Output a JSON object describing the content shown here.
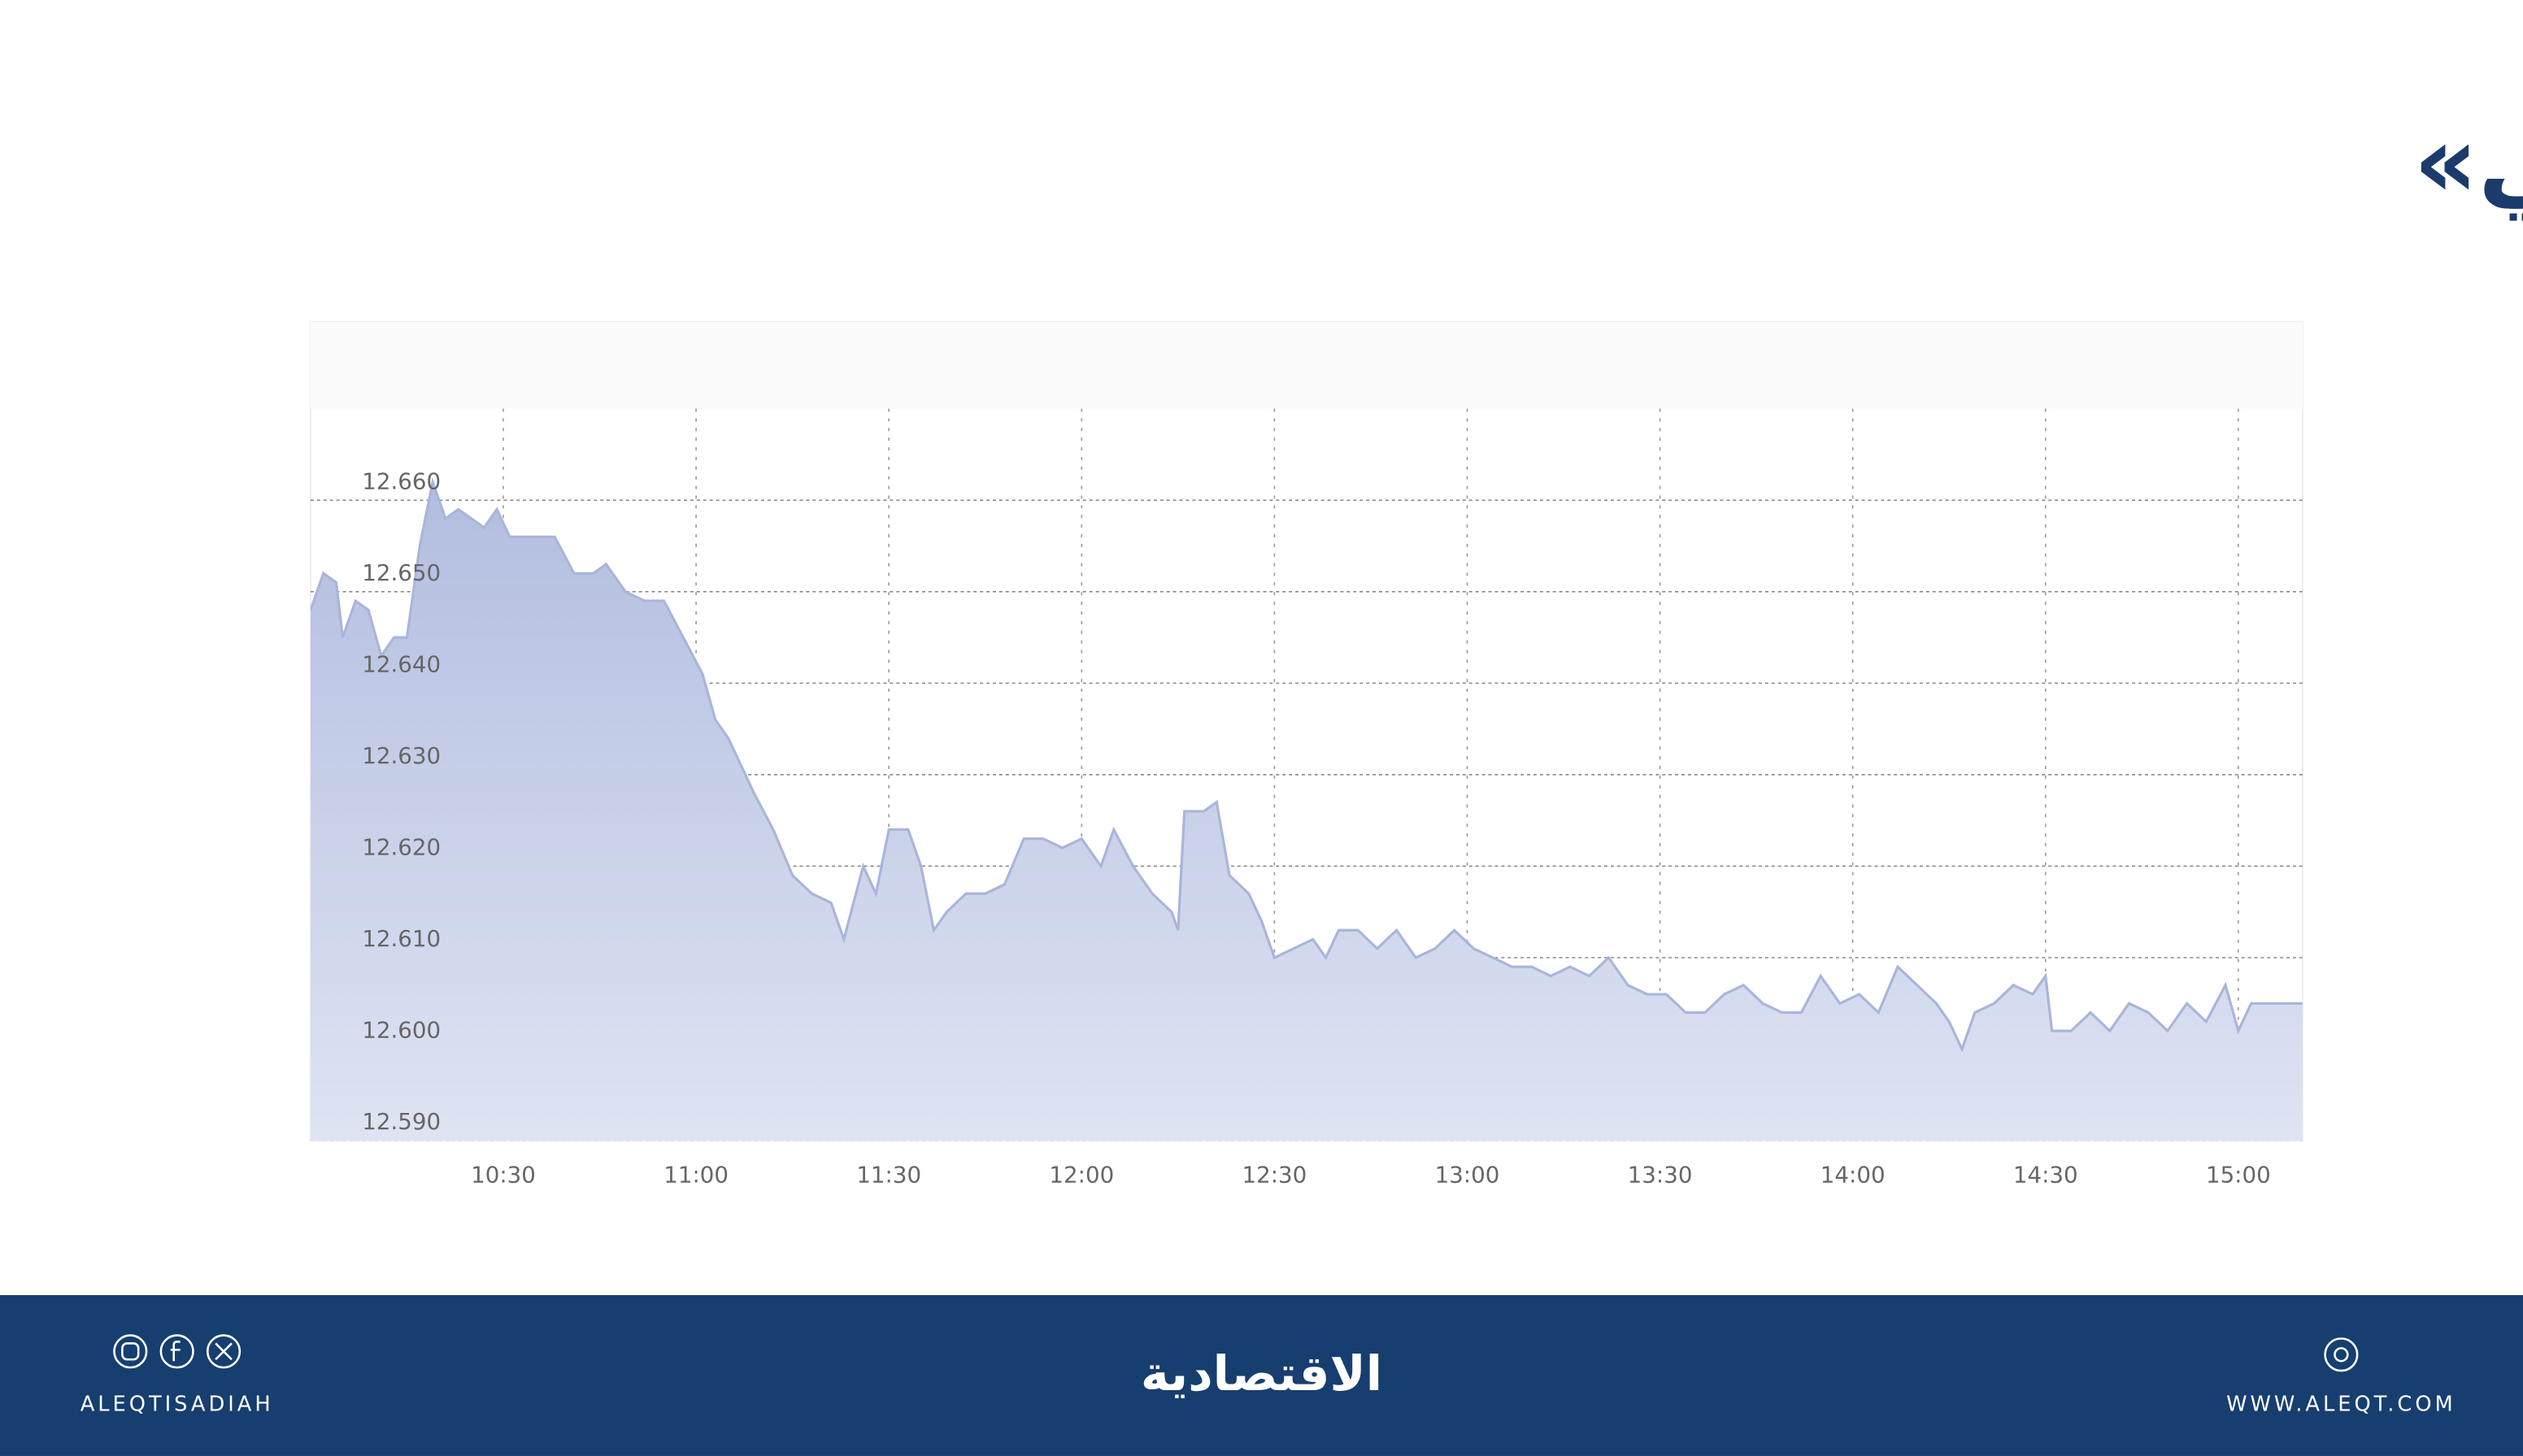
{
  "title": "مؤشر «تاسي»",
  "chart_data": {
    "type": "area",
    "color": "#a9b5da",
    "x": [
      "10:00",
      "10:02",
      "10:04",
      "10:05",
      "10:07",
      "10:09",
      "10:11",
      "10:13",
      "10:15",
      "10:17",
      "10:19",
      "10:21",
      "10:23",
      "10:25",
      "10:27",
      "10:29",
      "10:31",
      "10:35",
      "10:38",
      "10:41",
      "10:44",
      "10:46",
      "10:49",
      "10:52",
      "10:55",
      "10:58",
      "11:01",
      "11:03",
      "11:05",
      "11:07",
      "11:09",
      "11:12",
      "11:15",
      "11:18",
      "11:21",
      "11:23",
      "11:26",
      "11:28",
      "11:30",
      "11:33",
      "11:35",
      "11:37",
      "11:39",
      "11:42",
      "11:45",
      "11:48",
      "11:51",
      "11:54",
      "11:57",
      "12:00",
      "12:03",
      "12:05",
      "12:08",
      "12:11",
      "12:14",
      "12:15",
      "12:16",
      "12:19",
      "12:21",
      "12:23",
      "12:26",
      "12:28",
      "12:30",
      "12:33",
      "12:36",
      "12:38",
      "12:40",
      "12:43",
      "12:46",
      "12:49",
      "12:52",
      "12:55",
      "12:58",
      "13:01",
      "13:04",
      "13:07",
      "13:10",
      "13:13",
      "13:16",
      "13:19",
      "13:22",
      "13:25",
      "13:28",
      "13:31",
      "13:34",
      "13:37",
      "13:40",
      "13:43",
      "13:46",
      "13:49",
      "13:52",
      "13:55",
      "13:58",
      "14:01",
      "14:04",
      "14:07",
      "14:10",
      "14:13",
      "14:15",
      "14:17",
      "14:19",
      "14:22",
      "14:25",
      "14:28",
      "14:30",
      "14:31",
      "14:34",
      "14:37",
      "14:40",
      "14:43",
      "14:46",
      "14:49",
      "14:52",
      "14:55",
      "14:58",
      "15:00",
      "15:02",
      "15:10"
    ],
    "values": [
      12.648,
      12.652,
      12.651,
      12.645,
      12.649,
      12.648,
      12.643,
      12.645,
      12.645,
      12.655,
      12.662,
      12.658,
      12.659,
      12.658,
      12.657,
      12.659,
      12.656,
      12.656,
      12.656,
      12.652,
      12.652,
      12.653,
      12.65,
      12.649,
      12.649,
      12.645,
      12.641,
      12.636,
      12.634,
      12.631,
      12.628,
      12.624,
      12.619,
      12.617,
      12.616,
      12.612,
      12.62,
      12.617,
      12.624,
      12.624,
      12.62,
      12.613,
      12.615,
      12.617,
      12.617,
      12.618,
      12.623,
      12.623,
      12.622,
      12.623,
      12.62,
      12.624,
      12.62,
      12.617,
      12.615,
      12.613,
      12.626,
      12.626,
      12.627,
      12.619,
      12.617,
      12.614,
      12.61,
      12.611,
      12.612,
      12.61,
      12.613,
      12.613,
      12.611,
      12.613,
      12.61,
      12.611,
      12.613,
      12.611,
      12.61,
      12.609,
      12.609,
      12.608,
      12.609,
      12.608,
      12.61,
      12.607,
      12.606,
      12.606,
      12.604,
      12.604,
      12.606,
      12.607,
      12.605,
      12.604,
      12.604,
      12.608,
      12.605,
      12.606,
      12.604,
      12.609,
      12.607,
      12.605,
      12.603,
      12.6,
      12.604,
      12.605,
      12.607,
      12.606,
      12.608,
      12.602,
      12.602,
      12.604,
      12.602,
      12.605,
      12.604,
      12.602,
      12.605,
      12.603,
      12.607,
      12.602,
      12.605,
      12.605
    ],
    "xlim": [
      "10:00",
      "15:10"
    ],
    "xticks": [
      "10:30",
      "11:00",
      "11:30",
      "12:00",
      "12:30",
      "13:00",
      "13:30",
      "14:00",
      "14:30",
      "15:00"
    ],
    "ylim": [
      12.59,
      12.6795
    ],
    "yticks": [
      {
        "value": 12.59,
        "label": "12.590"
      },
      {
        "value": 12.6,
        "label": "12.600"
      },
      {
        "value": 12.61,
        "label": "12.610"
      },
      {
        "value": 12.62,
        "label": "12.620"
      },
      {
        "value": 12.63,
        "label": "12.630"
      },
      {
        "value": 12.64,
        "label": "12.640"
      },
      {
        "value": 12.65,
        "label": "12.650"
      },
      {
        "value": 12.66,
        "label": "12.660"
      }
    ],
    "grid": true
  },
  "footer": {
    "left": "ALEQTISADIAH",
    "center": "الاقتصادية",
    "right": "WWW.ALEQT.COM"
  }
}
